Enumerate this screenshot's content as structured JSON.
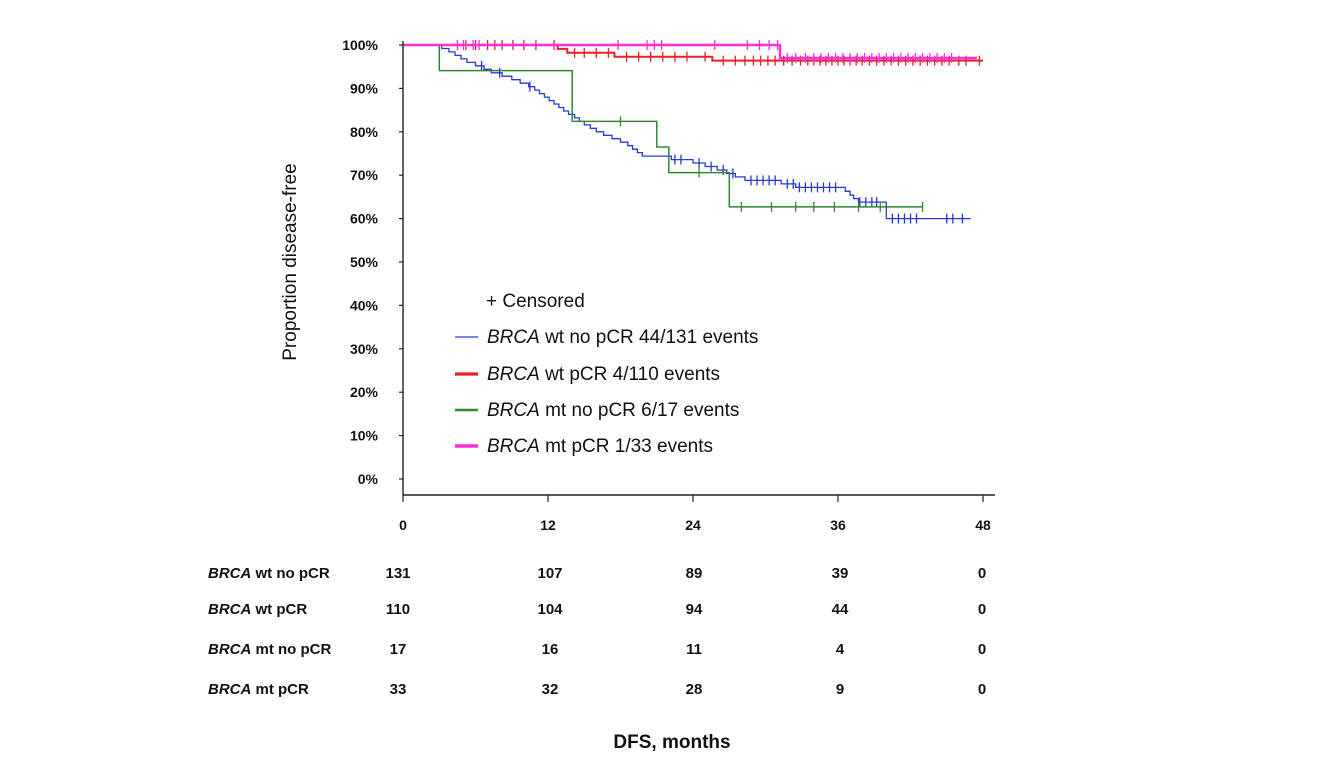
{
  "chart_data": {
    "type": "line",
    "step": true,
    "title": "",
    "xlabel": "DFS, months",
    "ylabel": "Proportion disease-free",
    "xlim": [
      0,
      48
    ],
    "ylim": [
      0,
      100
    ],
    "x_ticks": [
      "0",
      "12",
      "24",
      "36",
      "48"
    ],
    "y_ticks": [
      "0%",
      "10%",
      "20%",
      "30%",
      "40%",
      "50%",
      "60%",
      "70%",
      "80%",
      "90%",
      "100%"
    ],
    "legend": {
      "placement": "center-left",
      "censor_marker": "+",
      "censor_label": "Censored",
      "entries": [
        {
          "italic": "BRCA",
          "text": " wt no pCR 44/131  events",
          "color": "#2a3ad6"
        },
        {
          "italic": "BRCA",
          "text": " wt pCR 4/110 events",
          "color": "#e8202a"
        },
        {
          "italic": "BRCA",
          "text": " mt no pCR 6/17 events",
          "color": "#2e8b2e"
        },
        {
          "italic": "BRCA",
          "text": " mt pCR 1/33 events",
          "color": "#ff2fd8"
        }
      ]
    },
    "series": [
      {
        "name": "BRCA wt no pCR 44/131 events",
        "color": "#2a3ad6",
        "width": 1.3,
        "steps": [
          [
            0,
            100
          ],
          [
            3.2,
            99.2
          ],
          [
            3.8,
            98.4
          ],
          [
            4.3,
            97.6
          ],
          [
            4.8,
            96.8
          ],
          [
            5.3,
            96.0
          ],
          [
            6,
            95.2
          ],
          [
            6.7,
            94.4
          ],
          [
            7.3,
            93.6
          ],
          [
            8.2,
            92.8
          ],
          [
            9,
            92.0
          ],
          [
            9.7,
            91.2
          ],
          [
            10.4,
            90.4
          ],
          [
            10.9,
            89.6
          ],
          [
            11.3,
            88.8
          ],
          [
            11.7,
            88.0
          ],
          [
            12.1,
            87.2
          ],
          [
            12.5,
            86.4
          ],
          [
            12.9,
            85.6
          ],
          [
            13.3,
            84.8
          ],
          [
            13.7,
            84.0
          ],
          [
            14.2,
            83.2
          ],
          [
            14.6,
            82.4
          ],
          [
            15,
            81.6
          ],
          [
            15.5,
            80.8
          ],
          [
            16,
            80.0
          ],
          [
            16.6,
            79.2
          ],
          [
            17.3,
            78.4
          ],
          [
            18,
            77.6
          ],
          [
            18.6,
            76.8
          ],
          [
            19,
            76.0
          ],
          [
            19.4,
            75.2
          ],
          [
            19.8,
            74.4
          ],
          [
            21.5,
            74.4
          ],
          [
            22.2,
            73.6
          ],
          [
            24,
            72.8
          ],
          [
            25,
            72.0
          ],
          [
            26,
            71.2
          ],
          [
            26.8,
            70.4
          ],
          [
            27.5,
            69.6
          ],
          [
            28.3,
            68.8
          ],
          [
            30.5,
            68.8
          ],
          [
            31.3,
            68.0
          ],
          [
            32.5,
            67.2
          ],
          [
            36.2,
            67.2
          ],
          [
            36.6,
            66.3
          ],
          [
            37,
            65.4
          ],
          [
            37.3,
            64.6
          ],
          [
            37.7,
            63.8
          ],
          [
            39.6,
            63.8
          ],
          [
            40,
            60.0
          ],
          [
            47,
            60.0
          ]
        ],
        "censors": [
          6.5,
          8,
          10.5,
          22.5,
          23,
          24.5,
          25.5,
          26.5,
          27.3,
          28.8,
          29.3,
          29.8,
          30.3,
          30.8,
          31.8,
          32.3,
          32.8,
          33.3,
          33.8,
          34.3,
          34.8,
          35.3,
          35.8,
          37.8,
          38.3,
          38.8,
          39.2,
          40.5,
          41.0,
          41.5,
          42.0,
          42.5,
          45.0,
          45.5,
          46.3
        ]
      },
      {
        "name": "BRCA wt pCR 4/110 events",
        "color": "#e8202a",
        "width": 2.0,
        "steps": [
          [
            0,
            100
          ],
          [
            12.8,
            99.1
          ],
          [
            13.6,
            98.2
          ],
          [
            17.5,
            97.3
          ],
          [
            25.6,
            96.4
          ],
          [
            48,
            96.4
          ]
        ],
        "censors": [
          5.2,
          6.0,
          7.0,
          7.6,
          8.2,
          9.1,
          10.0,
          11.0,
          12.5,
          14.2,
          15.0,
          16.0,
          17.0,
          18.5,
          19.5,
          20.5,
          21.5,
          22.5,
          23.5,
          25.0,
          26.5,
          27.5,
          28.3,
          29.0,
          29.6,
          30.2,
          30.8,
          31.5,
          32.2,
          32.9,
          33.5,
          34.0,
          34.5,
          35.0,
          35.5,
          36.0,
          36.5,
          37.0,
          37.5,
          38.0,
          38.6,
          39.2,
          39.8,
          40.4,
          41.0,
          41.6,
          42.2,
          42.8,
          43.4,
          44.0,
          44.6,
          45.2,
          46.0,
          46.6,
          47.7
        ]
      },
      {
        "name": "BRCA mt no pCR 6/17 events",
        "color": "#2e8b2e",
        "width": 1.5,
        "steps": [
          [
            0,
            100
          ],
          [
            3,
            94.1
          ],
          [
            14,
            82.4
          ],
          [
            21,
            76.5
          ],
          [
            22,
            70.6
          ],
          [
            27,
            62.7
          ],
          [
            43,
            62.7
          ]
        ],
        "censors": [
          18,
          24.5,
          28,
          30.5,
          32.5,
          34,
          35.7,
          37.7,
          39.5,
          43
        ]
      },
      {
        "name": "BRCA mt pCR 1/33 events",
        "color": "#ff2fd8",
        "width": 2.4,
        "steps": [
          [
            0,
            100
          ],
          [
            31,
            100
          ],
          [
            31.2,
            97.0
          ],
          [
            47.5,
            97.0
          ]
        ],
        "censors": [
          4.5,
          5.0,
          5.8,
          6.3,
          17.8,
          20.2,
          20.8,
          21.4,
          25.8,
          28.5,
          29.5,
          30.3,
          31.0,
          31.8,
          32.5,
          33.3,
          34.0,
          34.6,
          35.2,
          35.8,
          36.4,
          37.0,
          37.6,
          38.2,
          38.8,
          39.4,
          40.0,
          40.6,
          41.2,
          41.8,
          42.4,
          43.0,
          43.6,
          44.2,
          44.8,
          45.4
        ]
      }
    ],
    "at_risk": {
      "times": [
        0,
        12,
        24,
        36,
        48
      ],
      "rows": [
        {
          "italic": "BRCA",
          "label": " wt no pCR",
          "values": [
            "131",
            "107",
            "89",
            "39",
            "0"
          ]
        },
        {
          "italic": "BRCA",
          "label": " wt pCR",
          "values": [
            "110",
            "104",
            "94",
            "44",
            "0"
          ]
        },
        {
          "italic": "BRCA",
          "label": " mt no pCR",
          "values": [
            "17",
            "16",
            "11",
            "4",
            "0"
          ]
        },
        {
          "italic": "BRCA",
          "label": " mt pCR",
          "values": [
            "33",
            "32",
            "28",
            "9",
            "0"
          ]
        }
      ]
    }
  }
}
